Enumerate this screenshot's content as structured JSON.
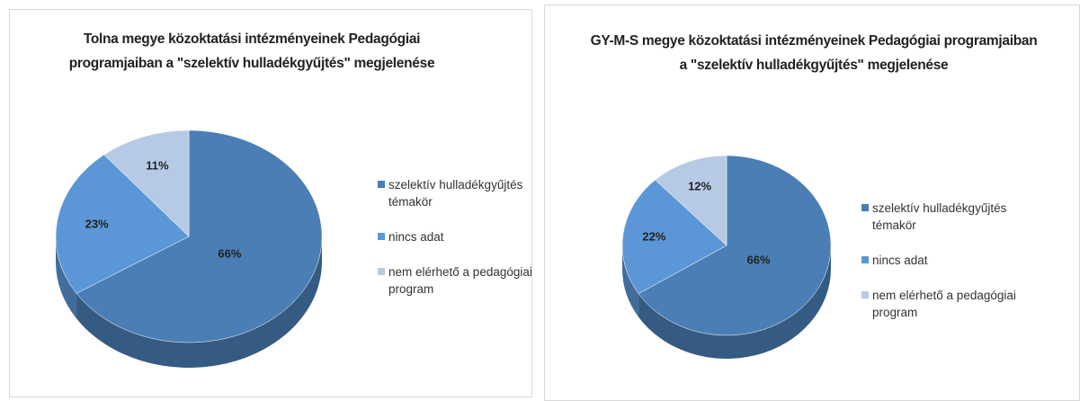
{
  "chart_data": [
    {
      "type": "pie",
      "title": "Tolna megye közoktatási intézményeinek Pedagógiai programjaiban  a \"szelektív hulladékgyűjtés\" megjelenése",
      "categories": [
        "szelektív hulladékgyűjtés témakör",
        "nincs adat",
        "nem elérhető a pedagógiai program"
      ],
      "values": [
        66,
        23,
        11
      ],
      "value_labels": [
        "66%",
        "23%",
        "11%"
      ],
      "colors": [
        "#4a7eb5",
        "#5b97d6",
        "#b6cae5"
      ],
      "legend": "right"
    },
    {
      "type": "pie",
      "title": "GY-M-S megye közoktatási intézményeinek Pedagógiai programjaiban  a \"szelektív hulladékgyűjtés\" megjelenése",
      "categories": [
        "szelektív hulladékgyűjtés témakör",
        "nincs adat",
        "nem elérhető a pedagógiai program"
      ],
      "values": [
        66,
        22,
        12
      ],
      "value_labels": [
        "66%",
        "22%",
        "12%"
      ],
      "colors": [
        "#4a7eb5",
        "#5b97d6",
        "#b6cae5"
      ],
      "legend": "right"
    }
  ]
}
